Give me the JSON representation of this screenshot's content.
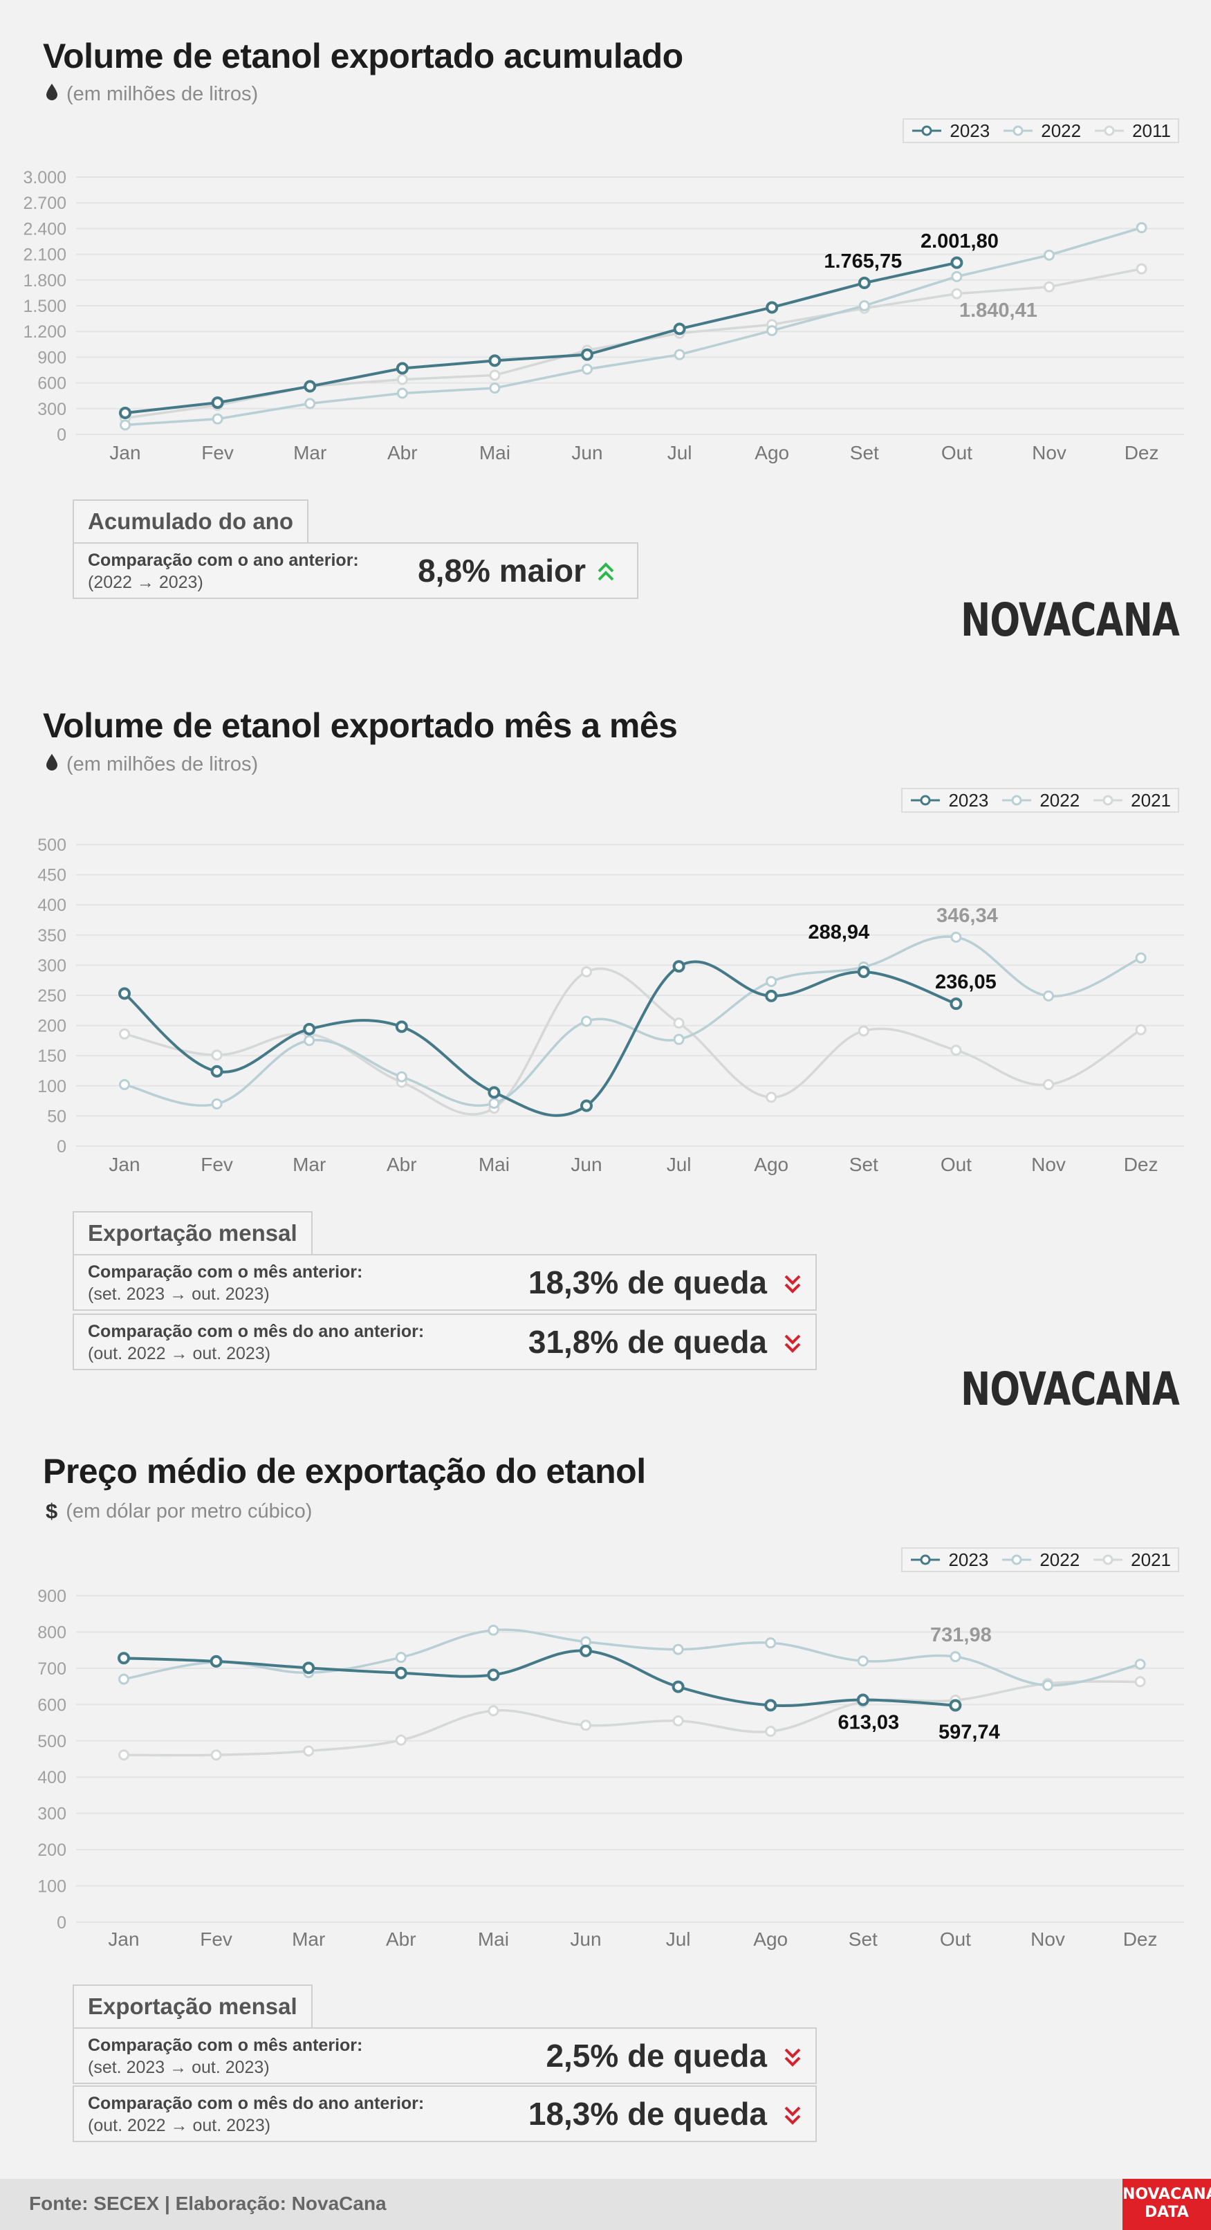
{
  "legend_order": [
    "2023",
    "2022",
    "prev"
  ],
  "colors": {
    "y2023": "#447a87",
    "y2022": "#b8d0d5",
    "yprev": "#d6d8d8",
    "up": "#2db84d",
    "down": "#d3232f"
  },
  "months": [
    "Jan",
    "Fev",
    "Mar",
    "Abr",
    "Mai",
    "Jun",
    "Jul",
    "Ago",
    "Set",
    "Out",
    "Nov",
    "Dez"
  ],
  "charts": [
    {
      "id": "acumulado",
      "title": "Volume de etanol exportado acumulado",
      "subtitle": "(em milhões de litros)",
      "icon": "drop-icon",
      "legend": [
        "2023",
        "2022",
        "2011"
      ],
      "logo": "NOVACANA",
      "box": {
        "tab": "Acumulado do ano",
        "rows": [
          {
            "label": "Comparação com o ano anterior:",
            "sub": "(2022 → 2023)",
            "value": "8,8% maior",
            "direction": "up"
          }
        ]
      }
    },
    {
      "id": "mensal",
      "title": "Volume de etanol exportado mês a mês",
      "subtitle": "(em milhões de litros)",
      "icon": "drop-icon",
      "legend": [
        "2023",
        "2022",
        "2021"
      ],
      "logo": "NOVACANA",
      "box": {
        "tab": "Exportação mensal",
        "rows": [
          {
            "label": "Comparação com o mês anterior:",
            "sub": "(set. 2023  → out. 2023)",
            "value": "18,3% de queda",
            "direction": "down"
          },
          {
            "label": "Comparação com o mês do ano anterior:",
            "sub": "(out. 2022 → out. 2023)",
            "value": "31,8% de queda",
            "direction": "down"
          }
        ]
      }
    },
    {
      "id": "preco",
      "title": "Preço médio de exportação do etanol",
      "subtitle": "(em dólar por metro cúbico)",
      "icon": "dollar-icon",
      "icon_text": "$",
      "legend": [
        "2023",
        "2022",
        "2021"
      ],
      "box": {
        "tab": "Exportação mensal",
        "rows": [
          {
            "label": "Comparação com o mês anterior:",
            "sub": "(set. 2023  → out. 2023)",
            "value": "2,5% de queda",
            "direction": "down"
          },
          {
            "label": "Comparação com o mês do ano anterior:",
            "sub": "(out. 2022 → out. 2023)",
            "value": "18,3% de queda",
            "direction": "down"
          }
        ]
      }
    }
  ],
  "chart_data": [
    {
      "type": "line",
      "title": "Volume de etanol exportado acumulado",
      "ylabel": "(em milhões de litros)",
      "categories": [
        "Jan",
        "Fev",
        "Mar",
        "Abr",
        "Mai",
        "Jun",
        "Jul",
        "Ago",
        "Set",
        "Out",
        "Nov",
        "Dez"
      ],
      "ylim": [
        0,
        3000
      ],
      "yticks": [
        0,
        300,
        600,
        900,
        1200,
        1500,
        1800,
        2100,
        2400,
        2700,
        3000
      ],
      "ytick_labels": [
        "0",
        "300",
        "600",
        "900",
        "1.200",
        "1.500",
        "1.800",
        "2.100",
        "2.400",
        "2.700",
        "3.000"
      ],
      "grid": true,
      "legend_position": "top-right",
      "smooth": false,
      "series": [
        {
          "name": "2023",
          "values": [
            250,
            370,
            560,
            770,
            860,
            930,
            1230,
            1480,
            1765.75,
            2001.8,
            null,
            null
          ]
        },
        {
          "name": "2022",
          "values": [
            110,
            180,
            360,
            480,
            540,
            760,
            930,
            1210,
            1500,
            1840,
            2090,
            2410
          ]
        },
        {
          "name": "2011",
          "values": [
            190,
            340,
            560,
            640,
            690,
            980,
            1180,
            1280,
            1470,
            1640,
            1720,
            1930
          ]
        }
      ],
      "annotations": [
        {
          "series": "2023",
          "month": "Set",
          "text": "1.765,75"
        },
        {
          "series": "2023",
          "month": "Out",
          "text": "2.001,80"
        },
        {
          "series": "2022",
          "month": "Out",
          "text": "1.840,41"
        }
      ]
    },
    {
      "type": "line",
      "title": "Volume de etanol exportado mês a mês",
      "ylabel": "(em milhões de litros)",
      "categories": [
        "Jan",
        "Fev",
        "Mar",
        "Abr",
        "Mai",
        "Jun",
        "Jul",
        "Ago",
        "Set",
        "Out",
        "Nov",
        "Dez"
      ],
      "ylim": [
        0,
        500
      ],
      "yticks": [
        0,
        50,
        100,
        150,
        200,
        250,
        300,
        350,
        400,
        450,
        500
      ],
      "ytick_labels": [
        "0",
        "50",
        "100",
        "150",
        "200",
        "250",
        "300",
        "350",
        "400",
        "450",
        "500"
      ],
      "grid": true,
      "legend_position": "top-right",
      "smooth": true,
      "series": [
        {
          "name": "2023",
          "values": [
            253,
            124,
            194,
            198,
            89,
            67,
            298,
            249,
            288.94,
            236.05,
            null,
            null
          ]
        },
        {
          "name": "2022",
          "values": [
            102,
            70,
            175,
            115,
            71,
            207,
            177,
            273,
            297,
            346.34,
            249,
            312
          ]
        },
        {
          "name": "2021",
          "values": [
            186,
            151,
            186,
            106,
            63,
            289,
            204,
            81,
            191,
            159,
            102,
            193
          ]
        }
      ],
      "annotations": [
        {
          "series": "2023",
          "month": "Set",
          "text": "288,94"
        },
        {
          "series": "2023",
          "month": "Out",
          "text": "236,05"
        },
        {
          "series": "2022",
          "month": "Out",
          "text": "346,34"
        }
      ]
    },
    {
      "type": "line",
      "title": "Preço médio de exportação do etanol",
      "ylabel": "(em dólar por metro cúbico)",
      "categories": [
        "Jan",
        "Fev",
        "Mar",
        "Abr",
        "Mai",
        "Jun",
        "Jul",
        "Ago",
        "Set",
        "Out",
        "Nov",
        "Dez"
      ],
      "ylim": [
        0,
        900
      ],
      "yticks": [
        0,
        100,
        200,
        300,
        400,
        500,
        600,
        700,
        800,
        900
      ],
      "ytick_labels": [
        "0",
        "100",
        "200",
        "300",
        "400",
        "500",
        "600",
        "700",
        "800",
        "900"
      ],
      "grid": true,
      "legend_position": "top-right",
      "smooth": true,
      "series": [
        {
          "name": "2023",
          "values": [
            728,
            719,
            701,
            687,
            682,
            748,
            649,
            598,
            613.03,
            597.74,
            null,
            null
          ]
        },
        {
          "name": "2022",
          "values": [
            670,
            717,
            688,
            730,
            805,
            773,
            752,
            770,
            720,
            731.98,
            653,
            711
          ]
        },
        {
          "name": "2021",
          "values": [
            461,
            461,
            472,
            502,
            583,
            543,
            555,
            526,
            607,
            612,
            658,
            663
          ]
        }
      ],
      "annotations": [
        {
          "series": "2023",
          "month": "Set",
          "text": "613,03"
        },
        {
          "series": "2023",
          "month": "Out",
          "text": "597,74"
        },
        {
          "series": "2022",
          "month": "Out",
          "text": "731,98"
        }
      ]
    }
  ],
  "footer": {
    "source": "Fonte: SECEX | Elaboração: NovaCana",
    "badge_line1": "NOVACANA",
    "badge_line2": "DATA"
  }
}
